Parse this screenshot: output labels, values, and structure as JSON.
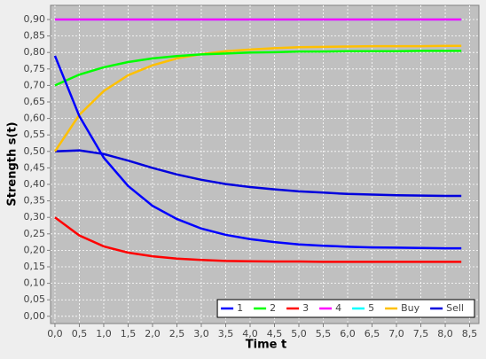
{
  "chart_data": {
    "type": "line",
    "x_label": "Time t",
    "y_label": "Strength s(t)",
    "x": [
      0,
      0.5,
      1,
      1.5,
      2,
      2.5,
      3,
      3.5,
      4,
      4.5,
      5,
      5.5,
      6,
      6.5,
      7,
      7.5,
      8,
      8.33
    ],
    "series": [
      {
        "name": "1",
        "color": "#0000ff",
        "values": [
          0.79,
          0.607,
          0.481,
          0.395,
          0.335,
          0.295,
          0.266,
          0.247,
          0.234,
          0.225,
          0.218,
          0.214,
          0.211,
          0.209,
          0.208,
          0.207,
          0.206,
          0.206
        ]
      },
      {
        "name": "2",
        "color": "#00ff00",
        "values": [
          0.7,
          0.733,
          0.755,
          0.771,
          0.782,
          0.789,
          0.794,
          0.797,
          0.8,
          0.801,
          0.803,
          0.803,
          0.804,
          0.804,
          0.804,
          0.805,
          0.805,
          0.805
        ]
      },
      {
        "name": "3",
        "color": "#ff0000",
        "values": [
          0.3,
          0.245,
          0.212,
          0.193,
          0.182,
          0.175,
          0.171,
          0.168,
          0.167,
          0.166,
          0.166,
          0.165,
          0.165,
          0.165,
          0.165,
          0.165,
          0.165,
          0.165
        ]
      },
      {
        "name": "4",
        "color": "#ff00ff",
        "values": [
          0.9,
          0.9,
          0.9,
          0.9,
          0.9,
          0.9,
          0.9,
          0.9,
          0.9,
          0.9,
          0.9,
          0.9,
          0.9,
          0.9,
          0.9,
          0.9,
          0.9,
          0.9
        ]
      },
      {
        "name": "5",
        "color": "#00ffff",
        "values": [
          0.9,
          0.9,
          0.9,
          0.9,
          0.9,
          0.9,
          0.9,
          0.9,
          0.9,
          0.9,
          0.9,
          0.9,
          0.9,
          0.9,
          0.9,
          0.9,
          0.9,
          0.9
        ]
      },
      {
        "name": "Buy",
        "color": "#ffc000",
        "values": [
          0.5,
          0.611,
          0.683,
          0.731,
          0.761,
          0.782,
          0.795,
          0.804,
          0.809,
          0.813,
          0.816,
          0.817,
          0.818,
          0.819,
          0.819,
          0.819,
          0.82,
          0.82
        ]
      },
      {
        "name": "Sell",
        "color": "#0000dd",
        "values": [
          0.5,
          0.503,
          0.492,
          0.472,
          0.45,
          0.43,
          0.414,
          0.401,
          0.392,
          0.385,
          0.379,
          0.375,
          0.371,
          0.369,
          0.367,
          0.366,
          0.365,
          0.365
        ]
      }
    ],
    "xlim": [
      -0.09,
      8.69
    ],
    "ylim": [
      -0.022,
      0.943
    ],
    "xticks": [
      {
        "value": 0,
        "label": "0,0"
      },
      {
        "value": 0.5,
        "label": "0,5"
      },
      {
        "value": 1,
        "label": "1,0"
      },
      {
        "value": 1.5,
        "label": "1,5"
      },
      {
        "value": 2,
        "label": "2,0"
      },
      {
        "value": 2.5,
        "label": "2,5"
      },
      {
        "value": 3,
        "label": "3,0"
      },
      {
        "value": 3.5,
        "label": "3,5"
      },
      {
        "value": 4,
        "label": "4,0"
      },
      {
        "value": 4.5,
        "label": "4,5"
      },
      {
        "value": 5,
        "label": "5,0"
      },
      {
        "value": 5.5,
        "label": "5,5"
      },
      {
        "value": 6,
        "label": "6,0"
      },
      {
        "value": 6.5,
        "label": "6,5"
      },
      {
        "value": 7,
        "label": "7,0"
      },
      {
        "value": 7.5,
        "label": "7,5"
      },
      {
        "value": 8,
        "label": "8,0"
      },
      {
        "value": 8.5,
        "label": "8,5"
      }
    ],
    "yticks": [
      {
        "value": 0,
        "label": "0,00"
      },
      {
        "value": 0.05,
        "label": "0,05"
      },
      {
        "value": 0.1,
        "label": "0,10"
      },
      {
        "value": 0.15,
        "label": "0,15"
      },
      {
        "value": 0.2,
        "label": "0,20"
      },
      {
        "value": 0.25,
        "label": "0,25"
      },
      {
        "value": 0.3,
        "label": "0,30"
      },
      {
        "value": 0.35,
        "label": "0,35"
      },
      {
        "value": 0.4,
        "label": "0,40"
      },
      {
        "value": 0.45,
        "label": "0,45"
      },
      {
        "value": 0.5,
        "label": "0,50"
      },
      {
        "value": 0.55,
        "label": "0,55"
      },
      {
        "value": 0.6,
        "label": "0,60"
      },
      {
        "value": 0.65,
        "label": "0,65"
      },
      {
        "value": 0.7,
        "label": "0,70"
      },
      {
        "value": 0.75,
        "label": "0,75"
      },
      {
        "value": 0.8,
        "label": "0,80"
      },
      {
        "value": 0.85,
        "label": "0,85"
      },
      {
        "value": 0.9,
        "label": "0,90"
      }
    ],
    "grid": true,
    "legend": "bottom-right"
  }
}
